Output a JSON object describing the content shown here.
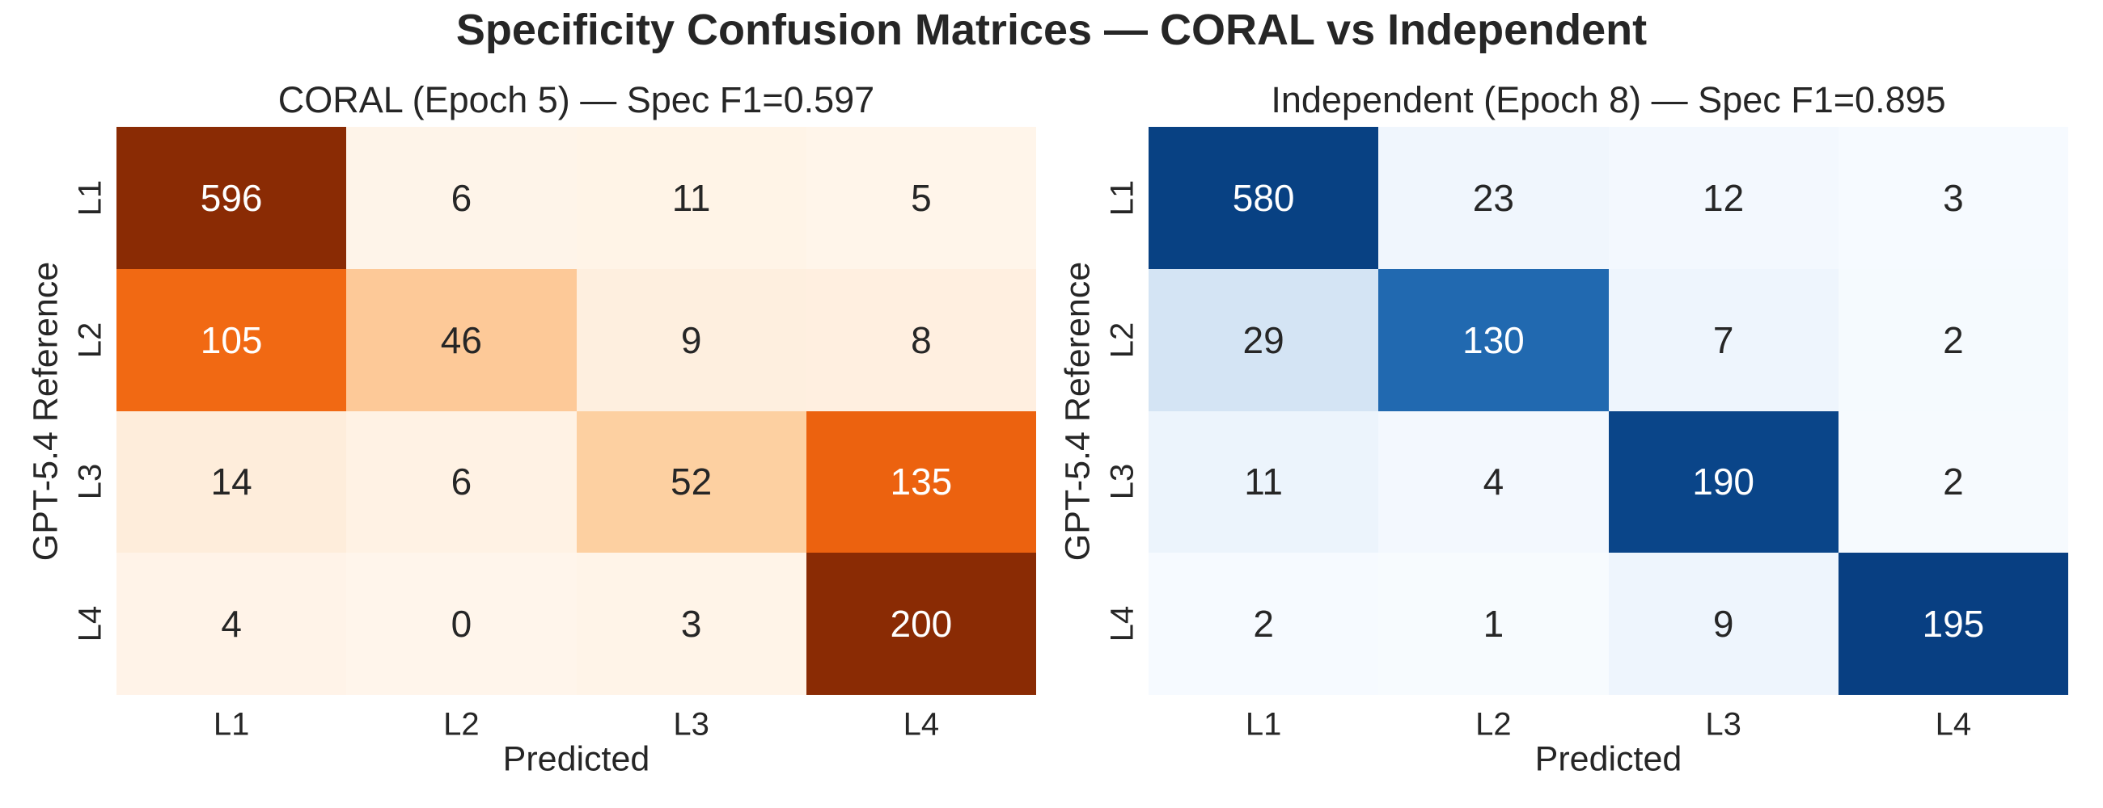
{
  "figure": {
    "title": "Specificity Confusion Matrices — CORAL vs Independent",
    "background_color": "#ffffff",
    "text_color": "#262626"
  },
  "chart_data": [
    {
      "type": "heatmap",
      "title": "CORAL (Epoch 5) — Spec F1=0.597",
      "xlabel": "Predicted",
      "ylabel": "GPT-5.4 Reference",
      "x_ticklabels": [
        "L1",
        "L2",
        "L3",
        "L4"
      ],
      "y_ticklabels": [
        "L1",
        "L2",
        "L3",
        "L4"
      ],
      "values": [
        [
          596,
          6,
          11,
          5
        ],
        [
          105,
          46,
          9,
          8
        ],
        [
          14,
          6,
          52,
          135
        ],
        [
          4,
          0,
          3,
          200
        ]
      ],
      "colormap": "Oranges",
      "normalization": "row",
      "annotations_on": true,
      "colorbar": false,
      "cell_colors": [
        [
          "#8a2b04",
          "#fef4e9",
          "#fff4e7",
          "#fff5ea"
        ],
        [
          "#f16913",
          "#fdc998",
          "#feefdf",
          "#ffefe0"
        ],
        [
          "#feeddb",
          "#fff2e4",
          "#fdd0a1",
          "#ec620f"
        ],
        [
          "#fff3e8",
          "#fff5eb",
          "#fff4e8",
          "#8a2b04"
        ]
      ],
      "cell_text_colors": [
        [
          "#ffffff",
          "#262626",
          "#262626",
          "#262626"
        ],
        [
          "#ffffff",
          "#262626",
          "#262626",
          "#262626"
        ],
        [
          "#262626",
          "#262626",
          "#262626",
          "#ffffff"
        ],
        [
          "#262626",
          "#262626",
          "#262626",
          "#ffffff"
        ]
      ]
    },
    {
      "type": "heatmap",
      "title": "Independent (Epoch 8) — Spec F1=0.895",
      "xlabel": "Predicted",
      "ylabel": "GPT-5.4 Reference",
      "x_ticklabels": [
        "L1",
        "L2",
        "L3",
        "L4"
      ],
      "y_ticklabels": [
        "L1",
        "L2",
        "L3",
        "L4"
      ],
      "values": [
        [
          580,
          23,
          12,
          3
        ],
        [
          29,
          130,
          7,
          2
        ],
        [
          11,
          4,
          190,
          2
        ],
        [
          2,
          1,
          9,
          195
        ]
      ],
      "colormap": "Blues",
      "normalization": "row",
      "annotations_on": true,
      "colorbar": false,
      "cell_colors": [
        [
          "#084183",
          "#f0f6fd",
          "#f3f8fe",
          "#f6faff"
        ],
        [
          "#d4e4f4",
          "#2169b0",
          "#eef5fd",
          "#f5fafe"
        ],
        [
          "#ecf4fc",
          "#f3f8fe",
          "#0a4589",
          "#f6fafe"
        ],
        [
          "#f6faff",
          "#f7fbfe",
          "#eef5fd",
          "#083f82"
        ]
      ],
      "cell_text_colors": [
        [
          "#ffffff",
          "#262626",
          "#262626",
          "#262626"
        ],
        [
          "#262626",
          "#ffffff",
          "#262626",
          "#262626"
        ],
        [
          "#262626",
          "#262626",
          "#ffffff",
          "#262626"
        ],
        [
          "#262626",
          "#262626",
          "#262626",
          "#ffffff"
        ]
      ]
    }
  ]
}
